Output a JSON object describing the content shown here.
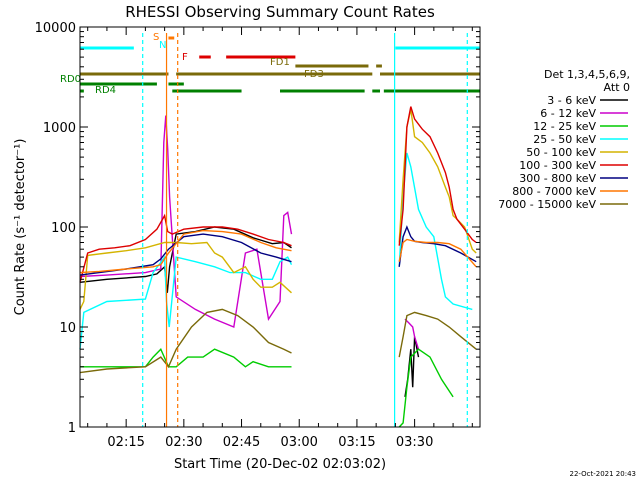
{
  "chart_data": {
    "type": "line",
    "title": "RHESSI Observing Summary Count Rates",
    "xlabel": "Start Time (20-Dec-02 02:03:02)",
    "ylabel": "Count Rate (s⁻¹ detector⁻¹)",
    "yscale": "log",
    "ylim": [
      1,
      10000
    ],
    "xlim_minutes": [
      3,
      107
    ],
    "x_ticks": [
      {
        "min": 15,
        "label": "02:15"
      },
      {
        "min": 30,
        "label": "02:30"
      },
      {
        "min": 45,
        "label": "02:45"
      },
      {
        "min": 60,
        "label": "03:00"
      },
      {
        "min": 75,
        "label": "03:15"
      },
      {
        "min": 90,
        "label": "03:30"
      }
    ],
    "y_ticks": [
      {
        "value": 1,
        "label": "1"
      },
      {
        "value": 10,
        "label": "10"
      },
      {
        "value": 100,
        "label": "100"
      },
      {
        "value": 1000,
        "label": "1000"
      },
      {
        "value": 10000,
        "label": "10000"
      }
    ],
    "legend_header": [
      "Det 1,3,4,5,6,9,",
      "Att 0"
    ],
    "legend_position": "right",
    "series": [
      {
        "name": "3 - 6 keV",
        "color": "#000000",
        "points": [
          [
            3,
            28
          ],
          [
            10,
            30
          ],
          [
            20,
            32
          ],
          [
            23,
            34
          ],
          [
            25,
            40
          ],
          [
            25.7,
            22
          ],
          [
            26.3,
            40
          ],
          [
            28,
            85
          ],
          [
            33,
            90
          ],
          [
            38,
            100
          ],
          [
            43,
            95
          ],
          [
            48,
            78
          ],
          [
            53,
            68
          ],
          [
            56,
            70
          ],
          [
            58,
            62
          ]
        ],
        "points2": [
          [
            87.5,
            2
          ],
          [
            88.2,
            3
          ],
          [
            89,
            6
          ],
          [
            89.5,
            2.5
          ],
          [
            90,
            8
          ],
          [
            91,
            5
          ]
        ]
      },
      {
        "name": "6 - 12 keV",
        "color": "#cc00cc",
        "points": [
          [
            3,
            32
          ],
          [
            10,
            33
          ],
          [
            20,
            35
          ],
          [
            24,
            38
          ],
          [
            24.8,
            700
          ],
          [
            25.3,
            1300
          ],
          [
            25.8,
            600
          ],
          [
            26.3,
            200
          ],
          [
            28,
            20
          ],
          [
            33,
            15
          ],
          [
            38,
            12
          ],
          [
            43,
            10
          ],
          [
            46,
            55
          ],
          [
            49,
            60
          ],
          [
            52,
            12
          ],
          [
            55,
            18
          ],
          [
            56,
            130
          ],
          [
            57,
            140
          ],
          [
            58,
            85
          ]
        ],
        "points2": [
          [
            87.5,
            12
          ],
          [
            88.5,
            11
          ],
          [
            89.5,
            10
          ],
          [
            90,
            8
          ],
          [
            91,
            6
          ]
        ]
      },
      {
        "name": "12 - 25 keV",
        "color": "#00cc00",
        "points": [
          [
            3,
            4
          ],
          [
            20,
            4
          ],
          [
            22,
            5
          ],
          [
            24,
            6
          ],
          [
            26,
            4
          ],
          [
            28,
            4
          ],
          [
            31,
            5
          ],
          [
            35,
            5
          ],
          [
            38,
            6
          ],
          [
            43,
            5
          ],
          [
            46,
            4
          ],
          [
            48,
            4.5
          ],
          [
            52,
            4
          ],
          [
            56,
            4
          ],
          [
            58,
            4
          ]
        ],
        "points2": [
          [
            86,
            1
          ],
          [
            87,
            1.1
          ],
          [
            88,
            2.5
          ],
          [
            89,
            5
          ],
          [
            91,
            6
          ],
          [
            94,
            5
          ],
          [
            97,
            3
          ],
          [
            100,
            2
          ]
        ]
      },
      {
        "name": "25 - 50 keV",
        "color": "#00ffff",
        "points": [
          [
            3,
            6
          ],
          [
            4,
            14
          ],
          [
            10,
            18
          ],
          [
            20,
            19
          ],
          [
            22,
            35
          ],
          [
            25,
            50
          ],
          [
            25.5,
            18
          ],
          [
            26.2,
            10
          ],
          [
            28,
            50
          ],
          [
            33,
            45
          ],
          [
            38,
            40
          ],
          [
            42,
            35
          ],
          [
            46,
            35
          ],
          [
            50,
            30
          ],
          [
            53,
            30
          ],
          [
            55,
            45
          ],
          [
            57,
            50
          ],
          [
            58,
            42
          ]
        ],
        "points2": [
          [
            86,
            40
          ],
          [
            87,
            200
          ],
          [
            88,
            550
          ],
          [
            89,
            400
          ],
          [
            91,
            150
          ],
          [
            93,
            100
          ],
          [
            95,
            80
          ],
          [
            97,
            30
          ],
          [
            98,
            20
          ],
          [
            100,
            17
          ],
          [
            105,
            15
          ]
        ]
      },
      {
        "name": "50 - 100 keV",
        "color": "#d4b400",
        "points": [
          [
            3,
            15
          ],
          [
            4,
            18
          ],
          [
            5,
            52
          ],
          [
            10,
            55
          ],
          [
            15,
            58
          ],
          [
            20,
            62
          ],
          [
            25,
            70
          ],
          [
            28,
            70
          ],
          [
            32,
            68
          ],
          [
            36,
            70
          ],
          [
            38,
            55
          ],
          [
            40,
            50
          ],
          [
            43,
            35
          ],
          [
            46,
            40
          ],
          [
            48,
            30
          ],
          [
            50,
            25
          ],
          [
            53,
            25
          ],
          [
            55,
            28
          ],
          [
            58,
            22
          ]
        ],
        "points2": [
          [
            86,
            70
          ],
          [
            87,
            300
          ],
          [
            88,
            1000
          ],
          [
            89,
            1500
          ],
          [
            90,
            800
          ],
          [
            92,
            700
          ],
          [
            94,
            550
          ],
          [
            96,
            400
          ],
          [
            98,
            250
          ],
          [
            99,
            200
          ],
          [
            100,
            130
          ],
          [
            101,
            120
          ],
          [
            103,
            100
          ],
          [
            105,
            60
          ],
          [
            106,
            55
          ]
        ]
      },
      {
        "name": "100 - 300 keV",
        "color": "#dd0000",
        "points": [
          [
            3,
            28
          ],
          [
            5,
            55
          ],
          [
            8,
            60
          ],
          [
            12,
            62
          ],
          [
            16,
            65
          ],
          [
            20,
            75
          ],
          [
            23,
            95
          ],
          [
            25,
            130
          ],
          [
            25.8,
            90
          ],
          [
            27,
            85
          ],
          [
            30,
            95
          ],
          [
            35,
            100
          ],
          [
            40,
            100
          ],
          [
            44,
            95
          ],
          [
            48,
            85
          ],
          [
            52,
            75
          ],
          [
            56,
            70
          ],
          [
            58,
            65
          ]
        ],
        "points2": [
          [
            86,
            65
          ],
          [
            87,
            150
          ],
          [
            88,
            1000
          ],
          [
            89,
            1600
          ],
          [
            90,
            1200
          ],
          [
            92,
            950
          ],
          [
            94,
            800
          ],
          [
            96,
            550
          ],
          [
            98,
            350
          ],
          [
            99,
            250
          ],
          [
            100,
            150
          ],
          [
            101,
            120
          ],
          [
            103,
            95
          ],
          [
            105,
            75
          ],
          [
            106,
            70
          ]
        ]
      },
      {
        "name": "300 - 800 keV",
        "color": "#000080",
        "points": [
          [
            3,
            33
          ],
          [
            8,
            35
          ],
          [
            15,
            38
          ],
          [
            22,
            42
          ],
          [
            24,
            48
          ],
          [
            26,
            60
          ],
          [
            30,
            80
          ],
          [
            35,
            85
          ],
          [
            40,
            80
          ],
          [
            45,
            70
          ],
          [
            50,
            55
          ],
          [
            54,
            50
          ],
          [
            58,
            45
          ]
        ],
        "points2": [
          [
            86,
            40
          ],
          [
            87,
            80
          ],
          [
            88,
            100
          ],
          [
            89,
            80
          ],
          [
            90,
            72
          ],
          [
            92,
            70
          ],
          [
            95,
            68
          ],
          [
            98,
            65
          ],
          [
            102,
            55
          ],
          [
            106,
            45
          ]
        ]
      },
      {
        "name": "800 - 7000 keV",
        "color": "#ff7700",
        "points": [
          [
            3,
            35
          ],
          [
            8,
            36
          ],
          [
            15,
            38
          ],
          [
            22,
            40
          ],
          [
            24,
            42
          ],
          [
            26,
            55
          ],
          [
            30,
            85
          ],
          [
            35,
            92
          ],
          [
            40,
            90
          ],
          [
            45,
            85
          ],
          [
            50,
            70
          ],
          [
            54,
            62
          ],
          [
            58,
            58
          ]
        ],
        "points2": [
          [
            86,
            45
          ],
          [
            87,
            70
          ],
          [
            88,
            75
          ],
          [
            90,
            72
          ],
          [
            93,
            70
          ],
          [
            96,
            70
          ],
          [
            99,
            68
          ],
          [
            102,
            60
          ],
          [
            106,
            40
          ]
        ]
      },
      {
        "name": "7000 - 15000 keV",
        "color": "#7a6a0a",
        "points": [
          [
            3,
            3.5
          ],
          [
            10,
            3.8
          ],
          [
            20,
            4
          ],
          [
            24,
            5
          ],
          [
            26,
            4
          ],
          [
            28,
            6
          ],
          [
            32,
            10
          ],
          [
            36,
            14
          ],
          [
            40,
            15
          ],
          [
            44,
            13
          ],
          [
            48,
            10
          ],
          [
            52,
            7
          ],
          [
            56,
            6
          ],
          [
            58,
            5.5
          ]
        ],
        "points2": [
          [
            86,
            5
          ],
          [
            87,
            8
          ],
          [
            88,
            13
          ],
          [
            90,
            14
          ],
          [
            93,
            13
          ],
          [
            96,
            12
          ],
          [
            99,
            10
          ],
          [
            102,
            8
          ],
          [
            106,
            6
          ]
        ]
      }
    ],
    "flags": [
      {
        "label": "S",
        "color": "#ff7700",
        "segments": [
          [
            26,
            27.5
          ]
        ]
      },
      {
        "label": "N",
        "color": "#00ffff",
        "segments": []
      },
      {
        "label": "F",
        "color": "#dd0000",
        "segments": [
          [
            34,
            37
          ],
          [
            41,
            59
          ]
        ]
      },
      {
        "label": "FD1",
        "color": "#7a6a0a",
        "segments": [
          [
            59,
            78
          ],
          [
            80,
            81.5
          ]
        ]
      },
      {
        "label": "FD3",
        "color": "#7a6a0a",
        "segments": [
          [
            3,
            26
          ],
          [
            28,
            79
          ],
          [
            81,
            107
          ]
        ]
      },
      {
        "label": "RD0",
        "color": "#008000",
        "segments": [
          [
            3,
            23
          ],
          [
            26,
            30
          ]
        ]
      },
      {
        "label": "RD4",
        "color": "#008000",
        "segments": [
          [
            3,
            4
          ],
          [
            27,
            45
          ],
          [
            55,
            77
          ],
          [
            79,
            81
          ],
          [
            82,
            107
          ]
        ]
      }
    ],
    "saa_lines": [
      {
        "color": "#00ffff",
        "min": [
          3,
          17
        ]
      },
      {
        "color": "#00ffff",
        "min": [
          85,
          107
        ]
      }
    ],
    "footer_date": "22-Oct-2021 20:43"
  }
}
